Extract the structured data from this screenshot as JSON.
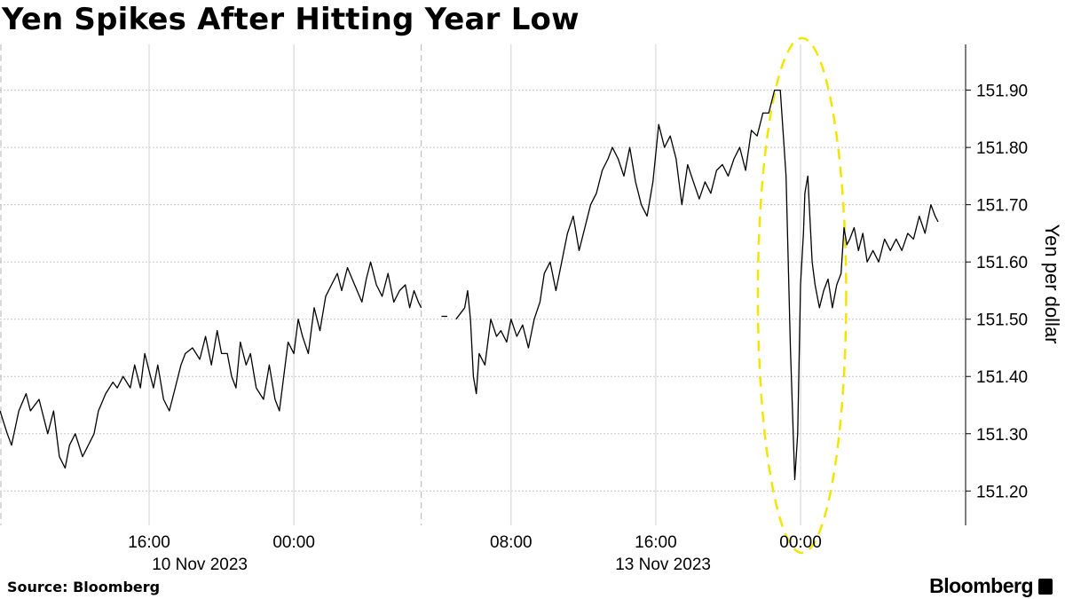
{
  "title": "Yen Spikes After Hitting Year Low",
  "source": "Source: Bloomberg",
  "brand": "Bloomberg",
  "chart_data": {
    "type": "line",
    "title": "Yen Spikes After Hitting Year Low",
    "ylabel": "Yen per dollar",
    "ylim": [
      151.14,
      151.98
    ],
    "yticks": [
      151.2,
      151.3,
      151.4,
      151.5,
      151.6,
      151.7,
      151.8,
      151.9
    ],
    "ytick_labels": [
      "151.20",
      "151.30",
      "151.40",
      "151.50",
      "151.60",
      "151.70",
      "151.80",
      "151.90"
    ],
    "xlim": [
      -10.3,
      56.4
    ],
    "xticks": [
      {
        "x": 0,
        "label": "16:00"
      },
      {
        "x": 10,
        "label": "00:00"
      },
      {
        "x": 25,
        "label": "08:00"
      },
      {
        "x": 35,
        "label": "16:00"
      },
      {
        "x": 45,
        "label": "00:00"
      }
    ],
    "date_labels": [
      {
        "x": 3.5,
        "label": "10 Nov 2023"
      },
      {
        "x": 35.5,
        "label": "13 Nov 2023"
      }
    ],
    "session_breaks": [
      -10.3,
      18.8
    ],
    "grid": true,
    "highlight": {
      "shape": "dashed ellipse",
      "color": "#f5e400",
      "x_center": 45.1,
      "x_range": [
        42.2,
        48.3
      ]
    },
    "series": [
      {
        "values_note": "",
        "x": [
          -10.3,
          -9.8,
          -9.5,
          -9,
          -8.5,
          -8.2,
          -7.6,
          -7,
          -6.6,
          -6.2,
          -5.8,
          -5.5,
          -5.1,
          -4.6,
          -4.2,
          -3.8,
          -3.5,
          -3,
          -2.5,
          -2.2,
          -1.8,
          -1.3,
          -1,
          -0.6,
          -0.3,
          0,
          0.3,
          0.6,
          1,
          1.4,
          1.8,
          2.2,
          2.5,
          3,
          3.5,
          3.9,
          4.3,
          4.7,
          5,
          5.4,
          5.7,
          6,
          6.3,
          6.7,
          7,
          7.4,
          7.9,
          8.3,
          8.7,
          9,
          9.3,
          9.6,
          10,
          10.3,
          10.6,
          11,
          11.4,
          11.8,
          12.2,
          12.6,
          13,
          13.3,
          13.7,
          14.2,
          14.7,
          15,
          15.3,
          15.7,
          16.1,
          16.5,
          16.9,
          17.3,
          17.7,
          18,
          18.3,
          18.6,
          18.8
        ],
        "y": [
          151.34,
          151.3,
          151.28,
          151.34,
          151.37,
          151.34,
          151.36,
          151.3,
          151.34,
          151.26,
          151.24,
          151.28,
          151.3,
          151.26,
          151.28,
          151.3,
          151.34,
          151.37,
          151.39,
          151.38,
          151.4,
          151.38,
          151.42,
          151.38,
          151.44,
          151.41,
          151.38,
          151.42,
          151.36,
          151.34,
          151.38,
          151.42,
          151.44,
          151.45,
          151.43,
          151.47,
          151.42,
          151.48,
          151.44,
          151.44,
          151.4,
          151.38,
          151.46,
          151.42,
          151.44,
          151.38,
          151.36,
          151.42,
          151.36,
          151.34,
          151.4,
          151.46,
          151.44,
          151.5,
          151.47,
          151.44,
          151.52,
          151.48,
          151.54,
          151.56,
          151.58,
          151.55,
          151.59,
          151.56,
          151.53,
          151.57,
          151.6,
          151.56,
          151.54,
          151.58,
          151.53,
          151.55,
          151.56,
          151.52,
          151.55,
          151.53,
          151.52
        ]
      },
      {
        "values_note": "",
        "x": [
          21.2,
          21.5,
          21.8,
          22,
          22.2,
          22.4,
          22.6,
          22.8,
          23.2,
          23.6,
          24,
          24.3,
          24.7,
          25,
          25.4,
          25.8,
          26.2,
          26.6,
          27,
          27.3,
          27.7,
          28.1,
          28.5,
          28.9,
          29.3,
          29.7,
          30.1,
          30.5,
          30.9,
          31.3,
          31.7,
          32,
          32.4,
          32.8,
          33.2,
          33.6,
          34,
          34.4,
          34.8,
          35.2,
          35.6,
          36,
          36.4,
          36.8,
          37.2,
          37.6,
          38,
          38.4,
          38.8,
          39.2,
          39.6,
          40,
          40.4,
          40.8,
          41.2,
          41.6,
          42,
          42.4,
          42.8,
          43.2,
          43.6,
          44,
          44.3,
          44.6,
          44.8,
          45,
          45.2,
          45.3,
          45.5,
          45.8,
          46,
          46.3,
          46.6,
          46.9,
          47.2,
          47.5,
          47.8,
          48,
          48.2,
          48.4,
          48.7,
          49,
          49.3,
          49.6,
          50,
          50.4,
          50.8,
          51.2,
          51.6,
          52,
          52.4,
          52.8,
          53.2,
          53.6,
          54,
          54.3,
          54.5
        ],
        "y": [
          151.5,
          151.51,
          151.52,
          151.55,
          151.5,
          151.4,
          151.37,
          151.44,
          151.42,
          151.5,
          151.47,
          151.48,
          151.46,
          151.5,
          151.47,
          151.49,
          151.45,
          151.5,
          151.53,
          151.58,
          151.6,
          151.55,
          151.6,
          151.65,
          151.68,
          151.62,
          151.66,
          151.7,
          151.72,
          151.76,
          151.78,
          151.8,
          151.78,
          151.75,
          151.8,
          151.74,
          151.7,
          151.68,
          151.74,
          151.84,
          151.8,
          151.82,
          151.78,
          151.7,
          151.77,
          151.74,
          151.71,
          151.74,
          151.72,
          151.76,
          151.77,
          151.75,
          151.78,
          151.8,
          151.76,
          151.83,
          151.82,
          151.86,
          151.86,
          151.9,
          151.9,
          151.75,
          151.45,
          151.22,
          151.3,
          151.56,
          151.65,
          151.72,
          151.75,
          151.6,
          151.56,
          151.52,
          151.55,
          151.57,
          151.52,
          151.56,
          151.58,
          151.66,
          151.63,
          151.64,
          151.66,
          151.62,
          151.65,
          151.6,
          151.62,
          151.6,
          151.64,
          151.62,
          151.64,
          151.62,
          151.65,
          151.64,
          151.68,
          151.65,
          151.7,
          151.68,
          151.67
        ]
      }
    ]
  }
}
